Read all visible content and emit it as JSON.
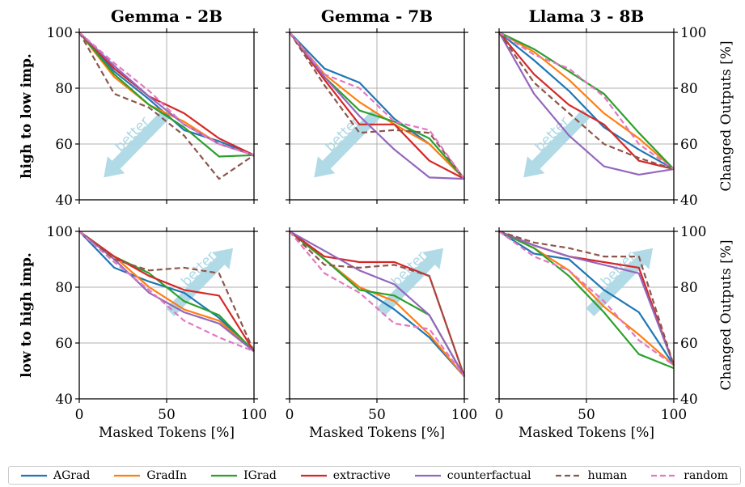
{
  "figure": {
    "col_titles": [
      "Gemma - 2B",
      "Gemma - 7B",
      "Llama 3 - 8B"
    ],
    "row_labels": [
      "high to low imp.",
      "low to high imp."
    ],
    "xlabel": "Masked Tokens [%]",
    "right_ylabel": "Changed Outputs [%]",
    "arrow_text": "better"
  },
  "legend": [
    {
      "name": "AGrad",
      "color": "#1f77b4",
      "dash": "solid"
    },
    {
      "name": "GradIn",
      "color": "#ff7f0e",
      "dash": "solid"
    },
    {
      "name": "IGrad",
      "color": "#2ca02c",
      "dash": "solid"
    },
    {
      "name": "extractive",
      "color": "#d62728",
      "dash": "solid"
    },
    {
      "name": "counterfactual",
      "color": "#9467bd",
      "dash": "solid"
    },
    {
      "name": "human",
      "color": "#8c564b",
      "dash": "dashed"
    },
    {
      "name": "random",
      "color": "#e377c2",
      "dash": "dashed"
    }
  ],
  "chart_data": [
    {
      "type": "line",
      "title": "Gemma - 2B",
      "row": "high to low imp.",
      "xlabel": "",
      "ylabel": "high to low imp.",
      "x": [
        0,
        20,
        40,
        60,
        80,
        100
      ],
      "xlim": [
        0,
        100
      ],
      "ylim": [
        40,
        100
      ],
      "xticks": [
        0,
        50,
        100
      ],
      "yticks": [
        40,
        60,
        80,
        100
      ],
      "grid": true,
      "arrow": "down-left",
      "series": [
        {
          "name": "AGrad",
          "values": [
            100,
            86,
            76,
            65,
            61,
            56
          ]
        },
        {
          "name": "GradIn",
          "values": [
            100,
            84,
            74,
            68,
            60,
            56
          ]
        },
        {
          "name": "IGrad",
          "values": [
            100,
            85,
            74,
            66,
            55.5,
            56
          ]
        },
        {
          "name": "extractive",
          "values": [
            100,
            87,
            77,
            71,
            62,
            56
          ]
        },
        {
          "name": "counterfactual",
          "values": [
            100,
            88,
            77,
            67,
            60,
            56
          ]
        },
        {
          "name": "human",
          "values": [
            100,
            78,
            73,
            63,
            47.5,
            56
          ]
        },
        {
          "name": "random",
          "values": [
            100,
            89,
            79,
            67,
            60,
            56
          ]
        }
      ]
    },
    {
      "type": "line",
      "title": "Gemma - 7B",
      "row": "high to low imp.",
      "xlabel": "",
      "ylabel": "",
      "x": [
        0,
        20,
        40,
        60,
        80,
        100
      ],
      "xlim": [
        0,
        100
      ],
      "ylim": [
        40,
        100
      ],
      "xticks": [
        0,
        50,
        100
      ],
      "yticks": [
        40,
        60,
        80,
        100
      ],
      "grid": true,
      "arrow": "down-left",
      "series": [
        {
          "name": "AGrad",
          "values": [
            100,
            87,
            82,
            69,
            60,
            47.5
          ]
        },
        {
          "name": "GradIn",
          "values": [
            100,
            85,
            75,
            67,
            60,
            47.5
          ]
        },
        {
          "name": "IGrad",
          "values": [
            100,
            84,
            72,
            68,
            62,
            47.5
          ]
        },
        {
          "name": "extractive",
          "values": [
            100,
            83,
            67,
            67,
            54,
            47.5
          ]
        },
        {
          "name": "counterfactual",
          "values": [
            100,
            84,
            70,
            58,
            48,
            47.5
          ]
        },
        {
          "name": "human",
          "values": [
            100,
            81,
            64,
            65,
            64,
            47.5
          ]
        },
        {
          "name": "random",
          "values": [
            100,
            85,
            80,
            68,
            65,
            47.5
          ]
        }
      ]
    },
    {
      "type": "line",
      "title": "Llama 3 - 8B",
      "row": "high to low imp.",
      "xlabel": "",
      "ylabel": "Changed Outputs [%]",
      "x": [
        0,
        20,
        40,
        60,
        80,
        100
      ],
      "xlim": [
        0,
        100
      ],
      "ylim": [
        40,
        100
      ],
      "xticks": [
        0,
        50,
        100
      ],
      "yticks": [
        40,
        60,
        80,
        100
      ],
      "grid": true,
      "arrow": "down-left",
      "series": [
        {
          "name": "AGrad",
          "values": [
            100,
            90,
            79,
            66,
            58,
            51
          ]
        },
        {
          "name": "GradIn",
          "values": [
            100,
            93,
            83,
            71,
            62,
            51
          ]
        },
        {
          "name": "IGrad",
          "values": [
            100,
            94,
            86,
            78,
            64,
            51
          ]
        },
        {
          "name": "extractive",
          "values": [
            100,
            85,
            74,
            67,
            54,
            51
          ]
        },
        {
          "name": "counterfactual",
          "values": [
            100,
            78,
            63,
            52,
            49,
            51
          ]
        },
        {
          "name": "human",
          "values": [
            100,
            82,
            71,
            60,
            55,
            51
          ]
        },
        {
          "name": "random",
          "values": [
            100,
            92,
            87,
            77,
            60,
            51
          ]
        }
      ]
    },
    {
      "type": "line",
      "title": "",
      "row": "low to high imp.",
      "xlabel": "Masked Tokens [%]",
      "ylabel": "low to high imp.",
      "x": [
        0,
        20,
        40,
        60,
        80,
        100
      ],
      "xlim": [
        0,
        100
      ],
      "ylim": [
        40,
        100
      ],
      "xticks": [
        0,
        50,
        100
      ],
      "yticks": [
        40,
        60,
        80,
        100
      ],
      "grid": true,
      "arrow": "up-right",
      "series": [
        {
          "name": "AGrad",
          "values": [
            100,
            87,
            82,
            78,
            69,
            57
          ]
        },
        {
          "name": "GradIn",
          "values": [
            100,
            91,
            80,
            72,
            68,
            57
          ]
        },
        {
          "name": "IGrad",
          "values": [
            100,
            91,
            85,
            75,
            70,
            57
          ]
        },
        {
          "name": "extractive",
          "values": [
            100,
            91,
            84,
            79,
            77,
            57
          ]
        },
        {
          "name": "counterfactual",
          "values": [
            100,
            90,
            78,
            71,
            67,
            57
          ]
        },
        {
          "name": "human",
          "values": [
            100,
            90,
            86,
            87,
            85,
            57
          ]
        },
        {
          "name": "random",
          "values": [
            100,
            89,
            79,
            68,
            62,
            57
          ]
        }
      ]
    },
    {
      "type": "line",
      "title": "",
      "row": "low to high imp.",
      "xlabel": "Masked Tokens [%]",
      "ylabel": "",
      "x": [
        0,
        20,
        40,
        60,
        80,
        100
      ],
      "xlim": [
        0,
        100
      ],
      "ylim": [
        40,
        100
      ],
      "xticks": [
        0,
        50,
        100
      ],
      "yticks": [
        40,
        60,
        80,
        100
      ],
      "grid": true,
      "arrow": "up-right",
      "series": [
        {
          "name": "AGrad",
          "values": [
            100,
            90,
            80,
            72,
            62,
            48
          ]
        },
        {
          "name": "GradIn",
          "values": [
            100,
            90,
            80,
            75,
            63,
            48
          ]
        },
        {
          "name": "IGrad",
          "values": [
            100,
            90,
            79,
            77,
            70,
            48
          ]
        },
        {
          "name": "extractive",
          "values": [
            100,
            91,
            89,
            89,
            84,
            48
          ]
        },
        {
          "name": "counterfactual",
          "values": [
            100,
            93,
            86,
            81,
            70,
            48
          ]
        },
        {
          "name": "human",
          "values": [
            100,
            88,
            87,
            88,
            84,
            48
          ]
        },
        {
          "name": "random",
          "values": [
            100,
            85,
            78,
            67,
            65,
            48
          ]
        }
      ]
    },
    {
      "type": "line",
      "title": "",
      "row": "low to high imp.",
      "xlabel": "Masked Tokens [%]",
      "ylabel": "Changed Outputs [%]",
      "x": [
        0,
        20,
        40,
        60,
        80,
        100
      ],
      "xlim": [
        0,
        100
      ],
      "ylim": [
        40,
        100
      ],
      "xticks": [
        0,
        50,
        100
      ],
      "yticks": [
        40,
        60,
        80,
        100
      ],
      "grid": true,
      "arrow": "up-right",
      "series": [
        {
          "name": "AGrad",
          "values": [
            100,
            92,
            90,
            79,
            71,
            52
          ]
        },
        {
          "name": "GradIn",
          "values": [
            100,
            94,
            86,
            73,
            63,
            52
          ]
        },
        {
          "name": "IGrad",
          "values": [
            100,
            94,
            84,
            71,
            56,
            51
          ]
        },
        {
          "name": "extractive",
          "values": [
            100,
            95,
            91,
            89,
            87,
            52
          ]
        },
        {
          "name": "counterfactual",
          "values": [
            100,
            95,
            91,
            88,
            85,
            52
          ]
        },
        {
          "name": "human",
          "values": [
            100,
            96,
            94,
            91,
            91,
            52
          ]
        },
        {
          "name": "random",
          "values": [
            100,
            91,
            86,
            75,
            61,
            52
          ]
        }
      ]
    }
  ]
}
